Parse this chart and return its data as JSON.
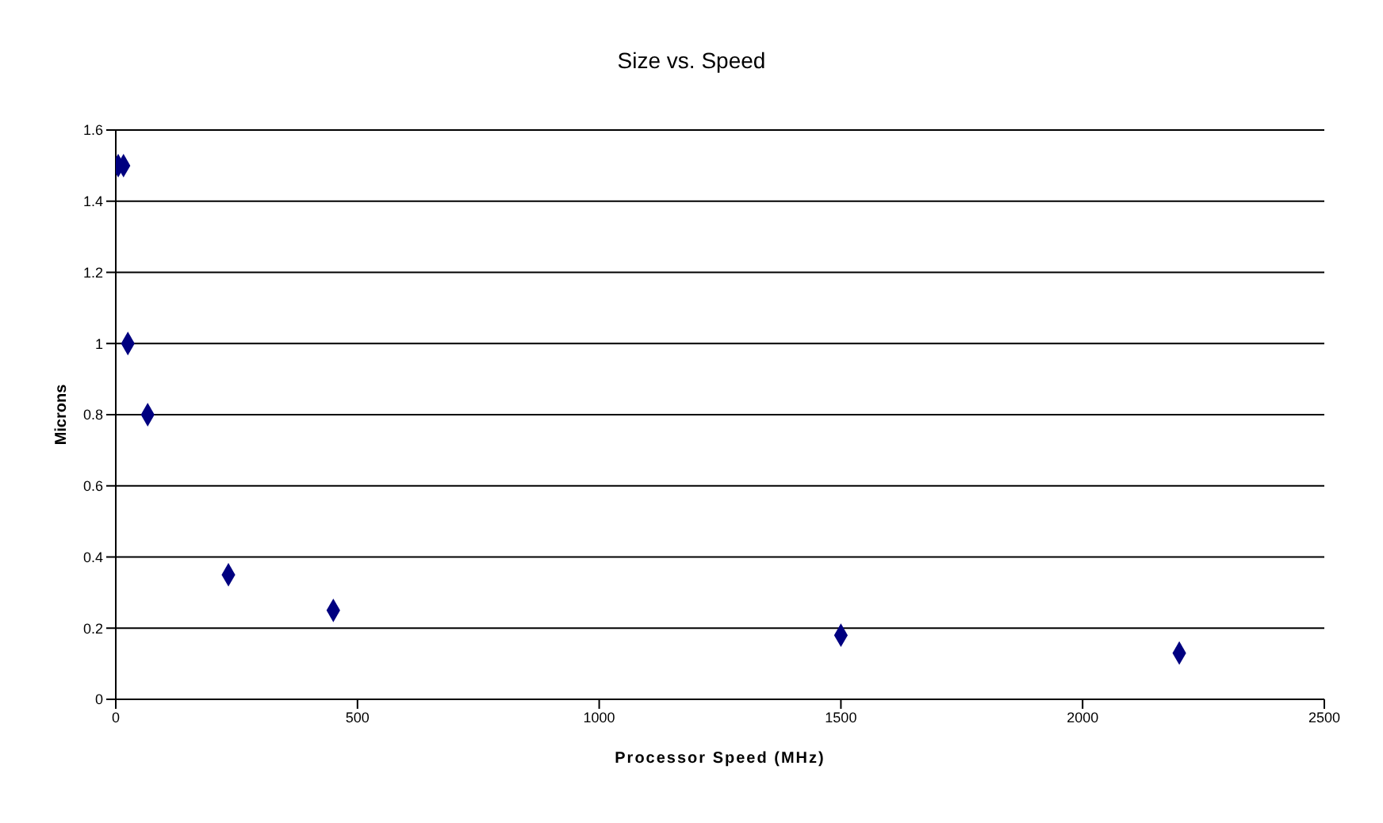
{
  "chart_data": {
    "type": "scatter",
    "title": "Size vs. Speed",
    "xlabel": "Processor Speed (MHz)",
    "ylabel": "Microns",
    "x": [
      5,
      16,
      25,
      66,
      233,
      450,
      1500,
      2200
    ],
    "series": [
      {
        "color": "#000080",
        "values": [
          1.5,
          1.5,
          1.0,
          0.8,
          0.35,
          0.25,
          0.18,
          0.13
        ]
      }
    ],
    "xlim": [
      0,
      2500
    ],
    "xticks": [
      0,
      500,
      1000,
      1500,
      2000,
      2500
    ],
    "ylim": [
      0,
      1.6
    ],
    "yticks": [
      0,
      0.2,
      0.4,
      0.6,
      0.8,
      1,
      1.2,
      1.4,
      1.6
    ],
    "grid": "y",
    "legend": false,
    "marker": "diamond"
  }
}
